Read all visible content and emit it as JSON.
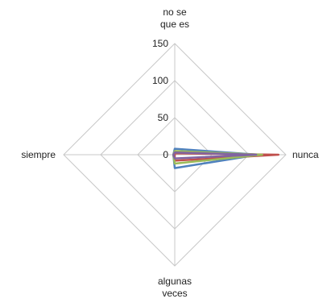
{
  "chart_data": {
    "type": "radar",
    "axes": [
      {
        "label_lines": [
          "no se",
          "que es"
        ]
      },
      {
        "label_lines": [
          "nunca"
        ]
      },
      {
        "label_lines": [
          "algunas",
          "veces"
        ]
      },
      {
        "label_lines": [
          "siempre"
        ]
      }
    ],
    "rmax": 150,
    "ticks": [
      0,
      50,
      100,
      150
    ],
    "grid": true,
    "legend": "none",
    "series": [
      {
        "color": "#4f81bd",
        "values": [
          8,
          113,
          18,
          2
        ]
      },
      {
        "color": "#c0504d",
        "values": [
          2,
          140,
          8,
          0
        ]
      },
      {
        "color": "#9bbb59",
        "values": [
          5,
          118,
          12,
          2
        ]
      },
      {
        "color": "#8064a2",
        "values": [
          3,
          110,
          5,
          2
        ]
      }
    ]
  }
}
